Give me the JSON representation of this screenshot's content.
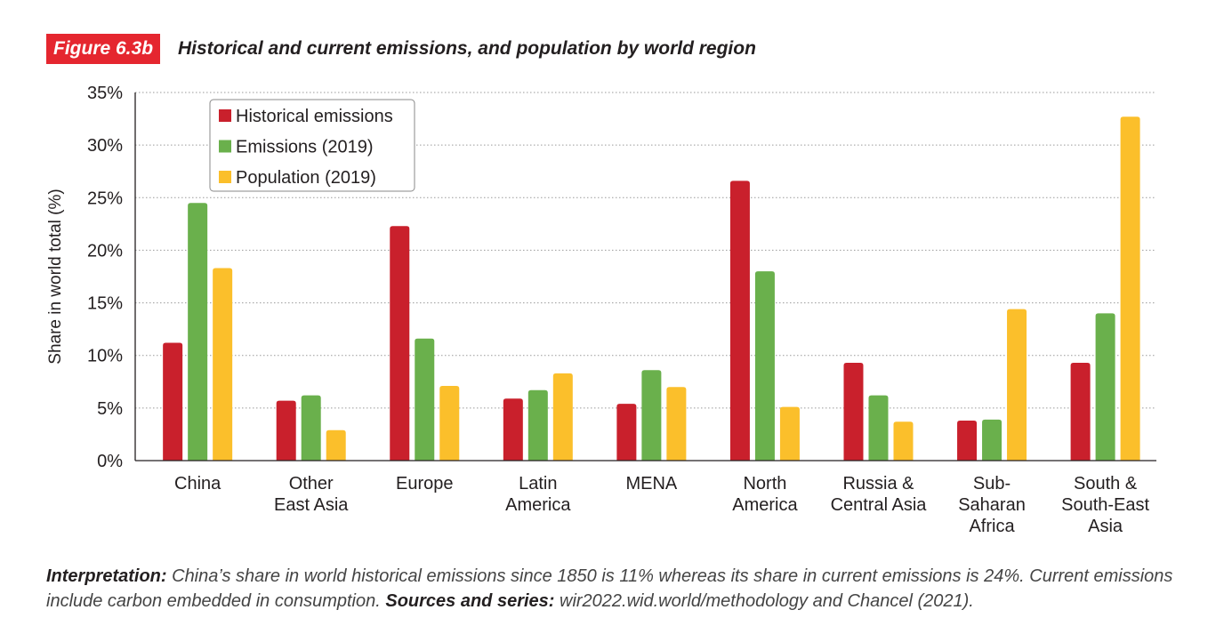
{
  "figure": {
    "tag": "Figure 6.3b",
    "title": "Historical and current emissions, and population by world region"
  },
  "chart_data": {
    "type": "bar",
    "ylabel": "Share in world total (%)",
    "xlabel": "",
    "ylim": [
      0,
      35
    ],
    "yticks": [
      0,
      5,
      10,
      15,
      20,
      25,
      30,
      35
    ],
    "ytick_labels": [
      "0%",
      "5%",
      "10%",
      "15%",
      "20%",
      "25%",
      "30%",
      "35%"
    ],
    "grid": true,
    "legend_position": "top-left",
    "categories": [
      [
        "China"
      ],
      [
        "Other",
        "East Asia"
      ],
      [
        "Europe"
      ],
      [
        "Latin",
        "America"
      ],
      [
        "MENA"
      ],
      [
        "North",
        "America"
      ],
      [
        "Russia &",
        "Central Asia"
      ],
      [
        "Sub-",
        "Saharan",
        "Africa"
      ],
      [
        "South &",
        "South-East",
        "Asia"
      ]
    ],
    "series": [
      {
        "name": "Historical emissions",
        "color": "#c9202c",
        "values": [
          11.2,
          5.7,
          22.3,
          5.9,
          5.4,
          26.6,
          9.3,
          3.8,
          9.3
        ]
      },
      {
        "name": "Emissions (2019)",
        "color": "#6ab04c",
        "values": [
          24.5,
          6.2,
          11.6,
          6.7,
          8.6,
          18.0,
          6.2,
          3.9,
          14.0
        ]
      },
      {
        "name": "Population (2019)",
        "color": "#fbbf2b",
        "values": [
          18.3,
          2.9,
          7.1,
          8.3,
          7.0,
          5.1,
          3.7,
          14.4,
          32.7
        ]
      }
    ]
  },
  "caption": {
    "interp_label": "Interpretation:",
    "interp_text": " China’s share in world historical emissions since 1850 is 11% whereas its share in current emissions is 24%. Current emissions include carbon embedded in consumption. ",
    "sources_label": "Sources and series:",
    "sources_text": " wir2022.wid.world/methodology and Chancel (2021)."
  }
}
